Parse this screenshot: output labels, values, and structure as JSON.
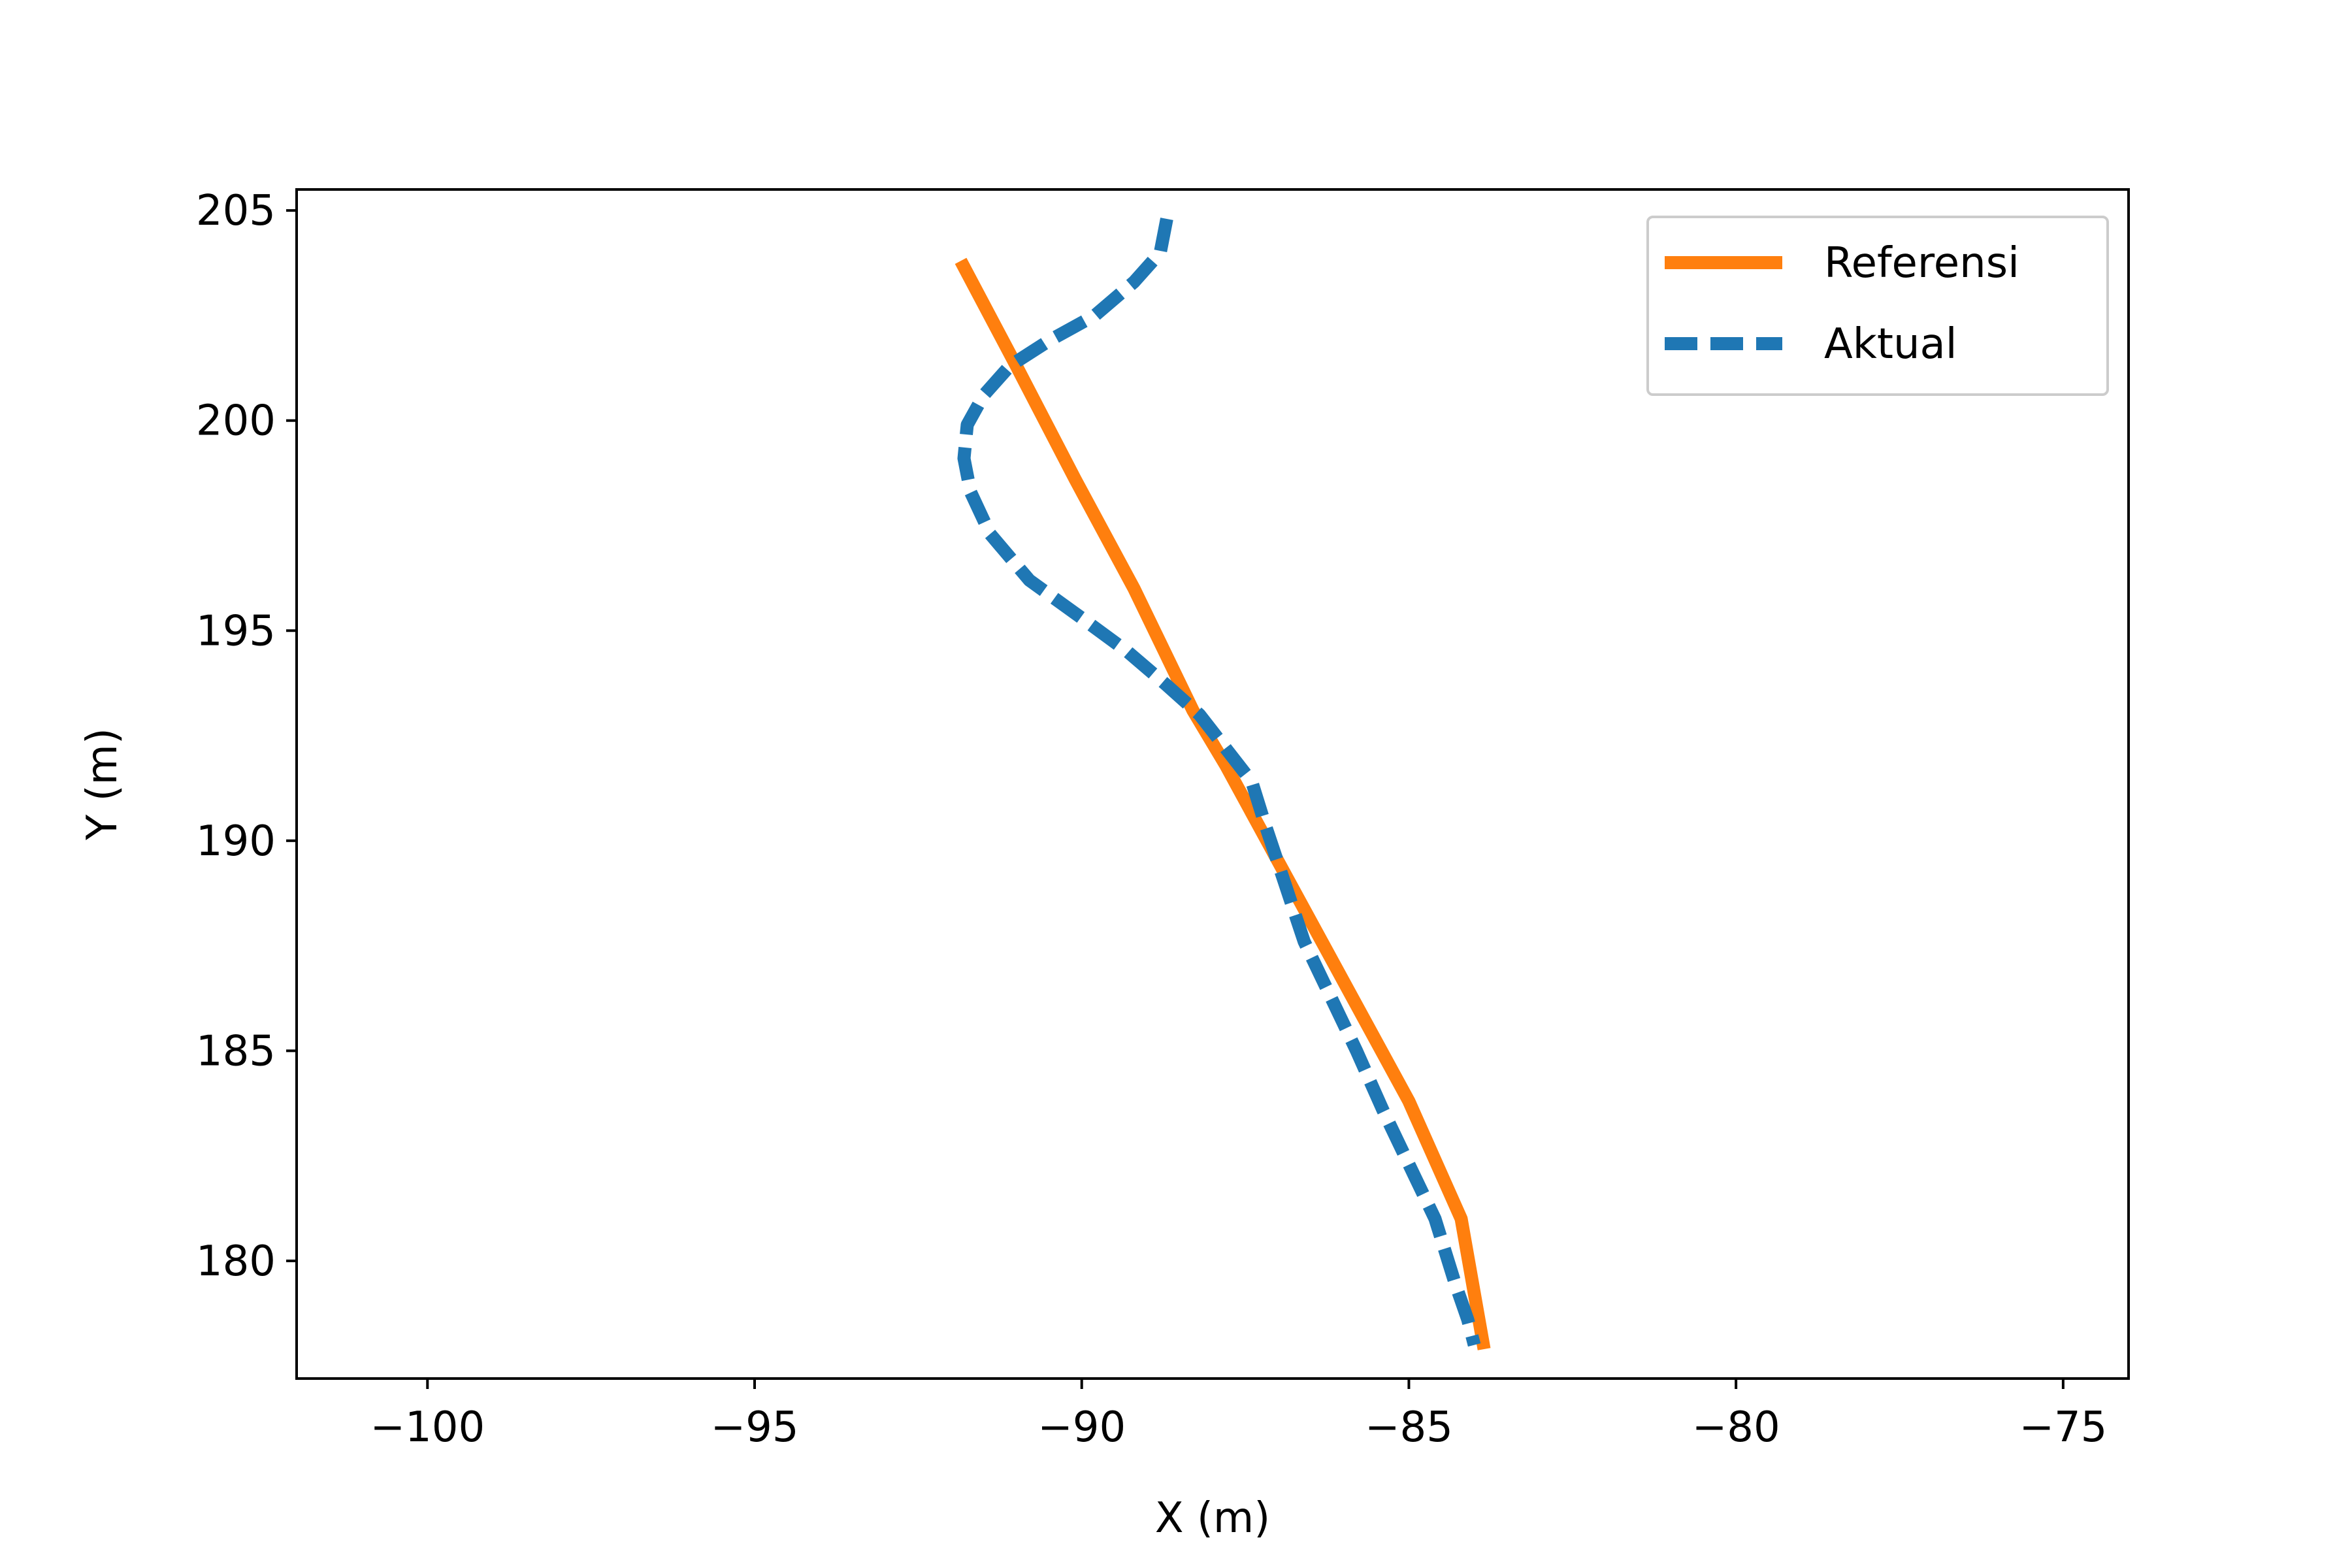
{
  "chart_data": {
    "type": "line",
    "title": "",
    "xlabel": "X (m)",
    "ylabel": "Y (m)",
    "xlim": [
      -102,
      -74
    ],
    "ylim": [
      177.2,
      205.5
    ],
    "xticks": [
      -100,
      -95,
      -90,
      -85,
      -80,
      -75
    ],
    "xtick_labels": [
      "−100",
      "−95",
      "−90",
      "−85",
      "−80",
      "−75"
    ],
    "yticks": [
      180,
      185,
      190,
      195,
      200,
      205
    ],
    "ytick_labels": [
      "180",
      "185",
      "190",
      "195",
      "200",
      "205"
    ],
    "grid": false,
    "legend_position": "upper right",
    "series": [
      {
        "name": "Referensi",
        "color": "#ff7f0e",
        "style": "solid",
        "x": [
          -91.85,
          -91.0,
          -90.1,
          -89.2,
          -88.3,
          -87.8,
          -86.4,
          -85.0,
          -84.2,
          -83.85
        ],
        "y": [
          203.8,
          201.3,
          198.6,
          196.0,
          193.1,
          191.8,
          187.8,
          183.8,
          181.0,
          177.9
        ]
      },
      {
        "name": "Aktual",
        "color": "#1f77b4",
        "style": "dashed",
        "x": [
          -88.7,
          -88.8,
          -89.2,
          -89.8,
          -90.5,
          -91.1,
          -91.5,
          -91.75,
          -91.8,
          -91.7,
          -91.4,
          -90.8,
          -90.0,
          -89.3,
          -88.7,
          -88.2,
          -87.8,
          -87.4,
          -87.2,
          -86.9,
          -86.6,
          -86.2,
          -85.8,
          -85.4,
          -85.0,
          -84.6,
          -84.3,
          -84.1,
          -84.0
        ],
        "y": [
          204.8,
          204.0,
          203.3,
          202.5,
          201.9,
          201.3,
          200.6,
          199.9,
          199.1,
          198.3,
          197.3,
          196.2,
          195.3,
          194.5,
          193.7,
          193.0,
          192.2,
          191.4,
          190.4,
          189.0,
          187.6,
          186.3,
          185.0,
          183.6,
          182.3,
          181.0,
          179.5,
          178.6,
          178.0
        ]
      }
    ]
  }
}
